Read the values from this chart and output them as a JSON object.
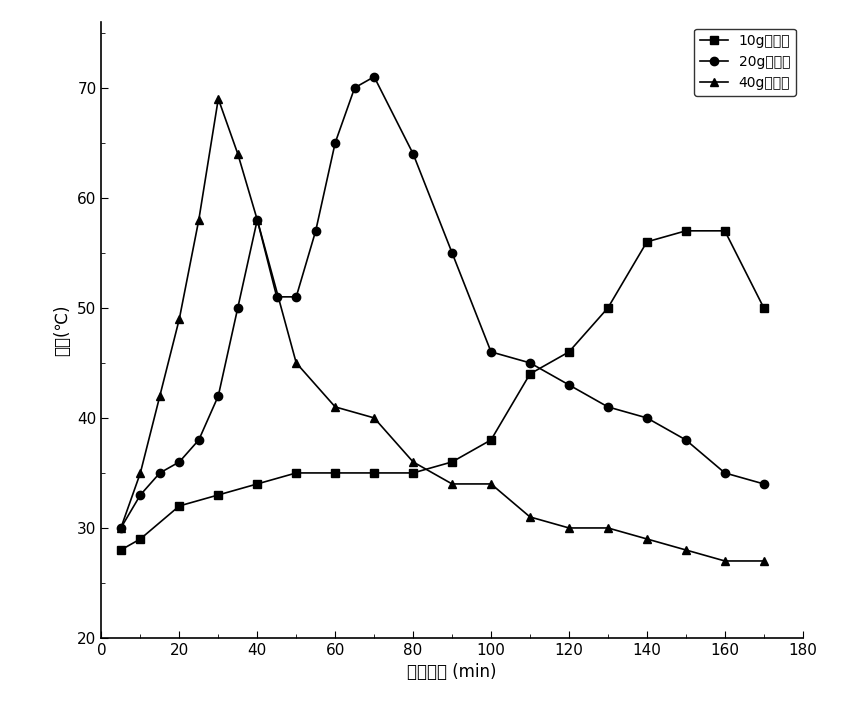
{
  "series": [
    {
      "label": "10g催化剂",
      "marker": "s",
      "color": "#000000",
      "x": [
        5,
        10,
        20,
        30,
        40,
        50,
        60,
        70,
        80,
        90,
        100,
        110,
        120,
        130,
        140,
        150,
        160,
        170
      ],
      "y": [
        28,
        29,
        32,
        33,
        34,
        35,
        35,
        35,
        35,
        36,
        38,
        44,
        46,
        50,
        56,
        57,
        57,
        50
      ]
    },
    {
      "label": "20g催化剂",
      "marker": "o",
      "color": "#000000",
      "x": [
        5,
        10,
        15,
        20,
        25,
        30,
        35,
        40,
        45,
        50,
        55,
        60,
        65,
        70,
        80,
        90,
        100,
        110,
        120,
        130,
        140,
        150,
        160,
        170
      ],
      "y": [
        30,
        33,
        35,
        36,
        38,
        42,
        50,
        58,
        51,
        51,
        57,
        65,
        70,
        71,
        64,
        55,
        46,
        45,
        43,
        41,
        40,
        38,
        35,
        34
      ]
    },
    {
      "label": "40g催化剂",
      "marker": "^",
      "color": "#000000",
      "x": [
        5,
        10,
        15,
        20,
        25,
        30,
        35,
        40,
        50,
        60,
        70,
        80,
        90,
        100,
        110,
        120,
        130,
        140,
        150,
        160,
        170
      ],
      "y": [
        30,
        35,
        42,
        49,
        58,
        69,
        64,
        58,
        45,
        41,
        40,
        36,
        34,
        34,
        31,
        30,
        30,
        29,
        28,
        27,
        27
      ]
    }
  ],
  "xlabel": "反应时间 (min)",
  "ylabel": "温度(℃)",
  "xlim": [
    0,
    180
  ],
  "ylim": [
    20,
    76
  ],
  "xticks": [
    0,
    20,
    40,
    60,
    80,
    100,
    120,
    140,
    160,
    180
  ],
  "yticks": [
    20,
    30,
    40,
    50,
    60,
    70
  ],
  "background_color": "#ffffff",
  "linewidth": 1.2,
  "markersize": 6,
  "legend_loc": "upper right",
  "font_size": 12,
  "tick_font_size": 11
}
